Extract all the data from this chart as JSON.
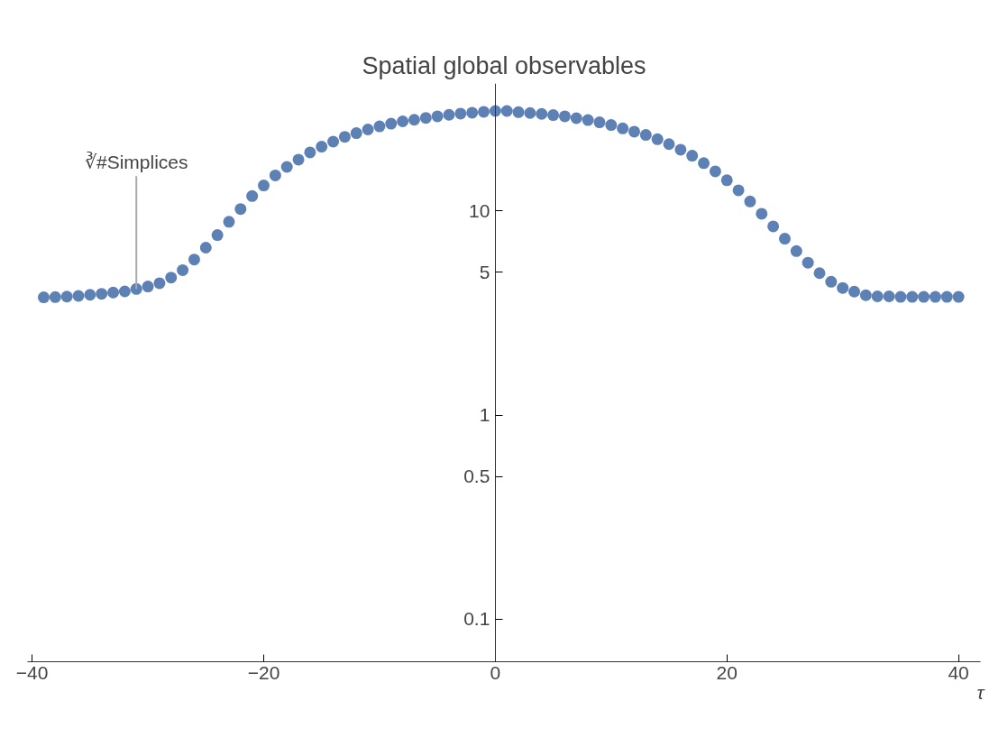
{
  "chart_data": {
    "type": "scatter",
    "title": "Spatial global observables",
    "xlabel": "τ",
    "x": [
      -39,
      -38,
      -37,
      -36,
      -35,
      -34,
      -33,
      -32,
      -31,
      -30,
      -29,
      -28,
      -27,
      -26,
      -25,
      -24,
      -23,
      -22,
      -21,
      -20,
      -19,
      -18,
      -17,
      -16,
      -15,
      -14,
      -13,
      -12,
      -11,
      -10,
      -9,
      -8,
      -7,
      -6,
      -5,
      -4,
      -3,
      -2,
      -1,
      0,
      1,
      2,
      3,
      4,
      5,
      6,
      7,
      8,
      9,
      10,
      11,
      12,
      13,
      14,
      15,
      16,
      17,
      18,
      19,
      20,
      21,
      22,
      23,
      24,
      25,
      26,
      27,
      28,
      29,
      30,
      31,
      32,
      33,
      34,
      35,
      36,
      37,
      38,
      39,
      40
    ],
    "series": [
      {
        "color": "#5e81b5",
        "values": [
          3.77,
          3.78,
          3.8,
          3.83,
          3.88,
          3.92,
          3.98,
          4.03,
          4.14,
          4.26,
          4.42,
          4.71,
          5.12,
          5.77,
          6.6,
          7.6,
          8.83,
          10.2,
          11.8,
          13.3,
          14.9,
          16.4,
          17.8,
          19.3,
          20.6,
          21.8,
          23.0,
          24.0,
          25.0,
          25.9,
          26.7,
          27.4,
          27.9,
          28.5,
          29.0,
          29.5,
          29.9,
          30.2,
          30.5,
          30.8,
          30.8,
          30.4,
          30.1,
          29.8,
          29.4,
          29.0,
          28.4,
          27.8,
          27.1,
          26.3,
          25.3,
          24.4,
          23.5,
          22.4,
          21.2,
          19.9,
          18.6,
          17.1,
          15.6,
          14.1,
          12.6,
          11.1,
          9.67,
          8.39,
          7.3,
          6.35,
          5.57,
          4.95,
          4.49,
          4.19,
          4.02,
          3.86,
          3.81,
          3.81,
          3.79,
          3.79,
          3.79,
          3.79,
          3.79,
          3.79
        ]
      }
    ],
    "annotations": [
      {
        "text": "∛#Simplices",
        "x": -31,
        "y": 4.14
      }
    ],
    "log": "y",
    "marker": "circle",
    "grid": false,
    "xlim": [
      -40.4,
      41.9
    ],
    "ylim": [
      0.062,
      42
    ],
    "xticks": [
      {
        "value": -40,
        "label": "−40"
      },
      {
        "value": -20,
        "label": "−20"
      },
      0,
      20,
      40
    ],
    "yticks": [
      0.1,
      0.5,
      1,
      5,
      10
    ]
  }
}
